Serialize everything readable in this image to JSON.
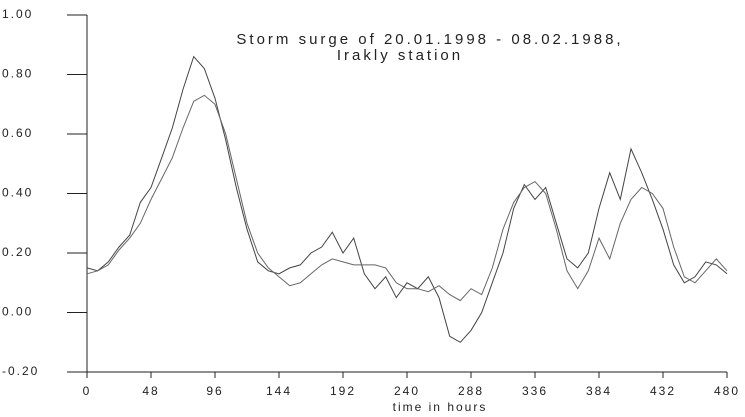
{
  "chart_data": {
    "type": "line",
    "title": "Storm surge of 20.01.1998 - 08.02.1988,",
    "subtitle": "Irakly station",
    "x_label": "time in hours",
    "xlim": [
      0,
      480
    ],
    "xticks": [
      0,
      48,
      96,
      144,
      192,
      240,
      288,
      336,
      384,
      432,
      480
    ],
    "ylim": [
      -0.2,
      1.0
    ],
    "yticks": [
      {
        "value": -0.2,
        "label": "-0.20"
      },
      {
        "value": 0,
        "label": "0.00"
      },
      {
        "value": 0.2,
        "label": "0.20"
      },
      {
        "value": 0.4,
        "label": "0.40"
      },
      {
        "value": 0.6,
        "label": "0.60"
      },
      {
        "value": 0.8,
        "label": "0.80"
      },
      {
        "value": 1.0,
        "label": "1.00"
      }
    ],
    "x": [
      0,
      8,
      16,
      24,
      32,
      40,
      48,
      56,
      64,
      72,
      80,
      88,
      96,
      104,
      112,
      120,
      128,
      136,
      144,
      152,
      160,
      168,
      176,
      184,
      192,
      200,
      208,
      216,
      224,
      232,
      240,
      248,
      256,
      264,
      272,
      280,
      288,
      296,
      304,
      312,
      320,
      328,
      336,
      344,
      352,
      360,
      368,
      376,
      384,
      392,
      400,
      408,
      416,
      424,
      432,
      440,
      448,
      456,
      464,
      472,
      480
    ],
    "series": [
      {
        "color": "#444444",
        "values": [
          0.15,
          0.14,
          0.17,
          0.22,
          0.26,
          0.37,
          0.42,
          0.52,
          0.62,
          0.75,
          0.86,
          0.82,
          0.72,
          0.58,
          0.42,
          0.28,
          0.17,
          0.14,
          0.13,
          0.15,
          0.16,
          0.2,
          0.22,
          0.27,
          0.2,
          0.25,
          0.13,
          0.08,
          0.12,
          0.05,
          0.1,
          0.08,
          0.12,
          0.05,
          -0.08,
          -0.1,
          -0.06,
          0.0,
          0.1,
          0.2,
          0.35,
          0.43,
          0.38,
          0.42,
          0.3,
          0.18,
          0.15,
          0.2,
          0.35,
          0.47,
          0.38,
          0.55,
          0.47,
          0.38,
          0.28,
          0.16,
          0.1,
          0.12,
          0.17,
          0.16,
          0.13
        ]
      },
      {
        "color": "#666666",
        "values": [
          0.13,
          0.14,
          0.16,
          0.21,
          0.25,
          0.3,
          0.38,
          0.45,
          0.52,
          0.62,
          0.71,
          0.73,
          0.7,
          0.6,
          0.45,
          0.3,
          0.2,
          0.15,
          0.12,
          0.09,
          0.1,
          0.13,
          0.16,
          0.18,
          0.17,
          0.16,
          0.16,
          0.16,
          0.15,
          0.1,
          0.08,
          0.08,
          0.07,
          0.09,
          0.06,
          0.04,
          0.08,
          0.06,
          0.15,
          0.28,
          0.37,
          0.42,
          0.44,
          0.4,
          0.28,
          0.14,
          0.08,
          0.14,
          0.25,
          0.18,
          0.3,
          0.38,
          0.42,
          0.4,
          0.35,
          0.22,
          0.12,
          0.1,
          0.14,
          0.18,
          0.14
        ]
      }
    ]
  }
}
